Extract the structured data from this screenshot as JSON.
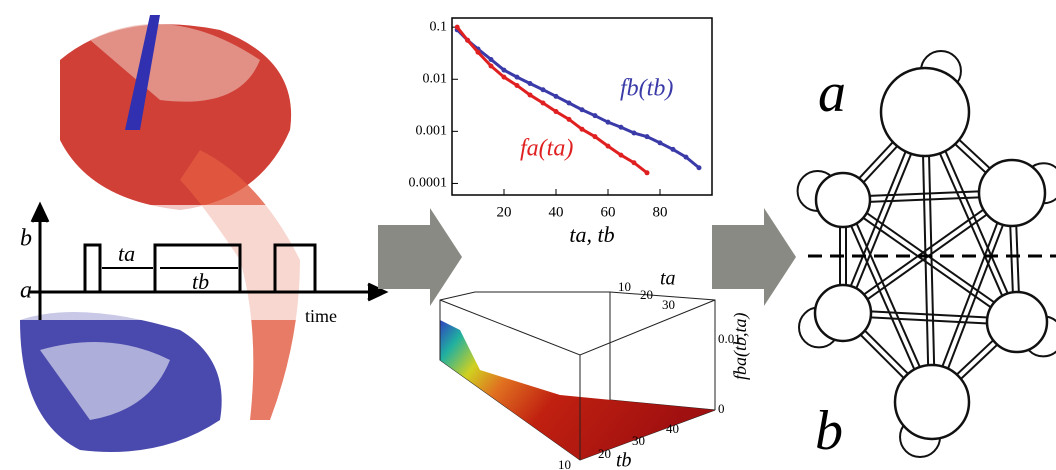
{
  "chart_data": {
    "type": "scatter",
    "log_y": true,
    "xlim": [
      0,
      100
    ],
    "ylim": [
      6e-05,
      0.15
    ],
    "xticks": [
      20,
      40,
      60,
      80
    ],
    "yticks": [
      0.1,
      0.01,
      0.001,
      0.0001
    ],
    "xlabel": "ta, tb",
    "series": [
      {
        "name": "fb(tb)",
        "color": "#3a3aa8",
        "x": [
          2,
          6,
          10,
          15,
          20,
          25,
          30,
          35,
          40,
          45,
          50,
          55,
          60,
          65,
          70,
          75,
          80,
          85,
          90,
          95
        ],
        "values": [
          0.089,
          0.056,
          0.038,
          0.024,
          0.015,
          0.011,
          0.0083,
          0.0063,
          0.0047,
          0.0035,
          0.0026,
          0.002,
          0.0015,
          0.0012,
          0.00093,
          0.00079,
          0.0006,
          0.00045,
          0.00032,
          0.0002
        ]
      },
      {
        "name": "fa(ta)",
        "color": "#e02020",
        "x": [
          2,
          6,
          10,
          15,
          20,
          25,
          30,
          35,
          40,
          45,
          50,
          55,
          60,
          65,
          70,
          75
        ],
        "values": [
          0.1,
          0.056,
          0.033,
          0.018,
          0.011,
          0.0076,
          0.005,
          0.0035,
          0.0024,
          0.0017,
          0.0011,
          0.00079,
          0.00052,
          0.00035,
          0.00025,
          0.00016
        ]
      }
    ]
  },
  "signal_panel": {
    "b": "b",
    "a": "a",
    "ta": "ta",
    "tb": "tb",
    "time": "time"
  },
  "surface_panel": {
    "ta_ticks": [
      "10",
      "20",
      "30"
    ],
    "ta_label": "ta",
    "z_top": "0.01",
    "z_bottom": "0",
    "z_label": "fba(tb,ta)",
    "tb_ticks": [
      "10",
      "20",
      "30",
      "40"
    ],
    "tb_label": "tb"
  },
  "network_panel": {
    "a": "a",
    "b": "b"
  }
}
